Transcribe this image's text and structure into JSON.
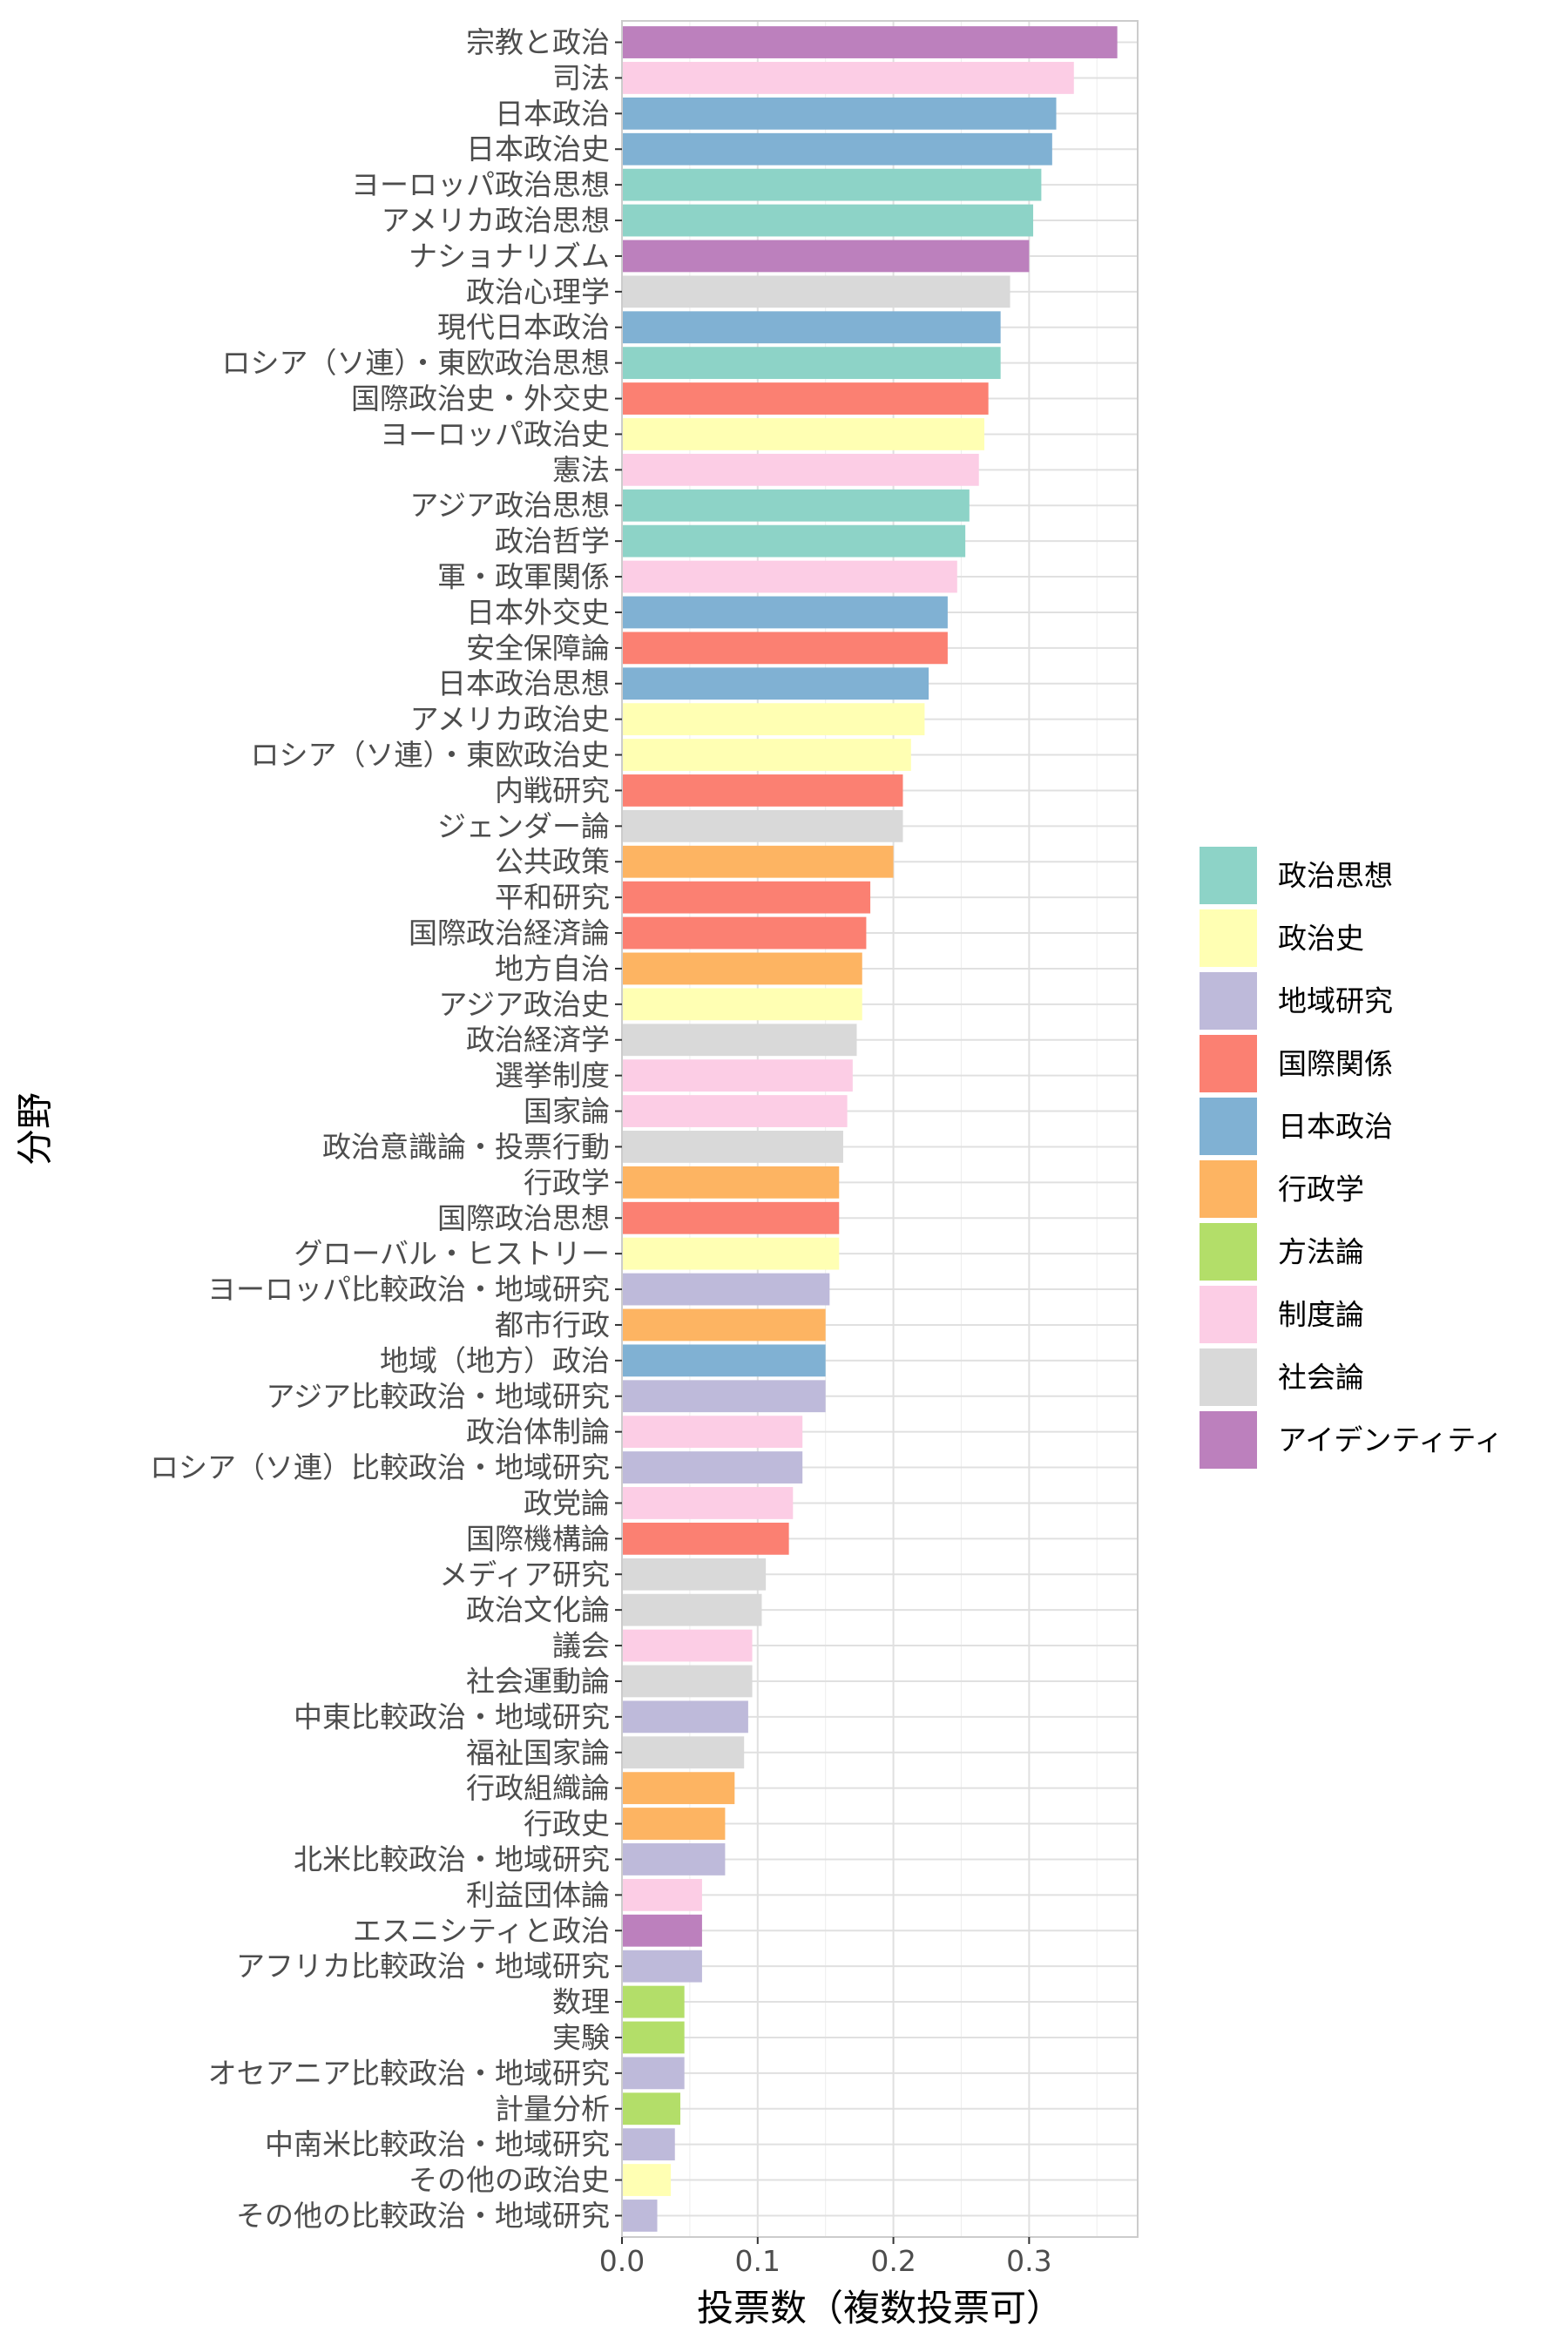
{
  "chart_data": {
    "type": "bar",
    "orientation": "horizontal",
    "xlabel": "投票数（複数投票可）",
    "ylabel": "分野",
    "xlim": [
      0,
      0.38
    ],
    "xticks": [
      0.0,
      0.1,
      0.2,
      0.3
    ],
    "xtick_labels": [
      "0.0",
      "0.1",
      "0.2",
      "0.3"
    ],
    "grid": true,
    "legend_position": "right",
    "legend": [
      {
        "name": "政治思想",
        "color": "#8DD3C7"
      },
      {
        "name": "政治史",
        "color": "#FFFFB3"
      },
      {
        "name": "地域研究",
        "color": "#BEBADA"
      },
      {
        "name": "国際関係",
        "color": "#FB8072"
      },
      {
        "name": "日本政治",
        "color": "#80B1D3"
      },
      {
        "name": "行政学",
        "color": "#FDB462"
      },
      {
        "name": "方法論",
        "color": "#B3DE69"
      },
      {
        "name": "制度論",
        "color": "#FCCDE5"
      },
      {
        "name": "社会論",
        "color": "#D9D9D9"
      },
      {
        "name": "アイデンティティ",
        "color": "#BC80BD"
      }
    ],
    "bars": [
      {
        "label": "宗教と政治",
        "value": 0.365,
        "group": "アイデンティティ"
      },
      {
        "label": "司法",
        "value": 0.333,
        "group": "制度論"
      },
      {
        "label": "日本政治",
        "value": 0.32,
        "group": "日本政治"
      },
      {
        "label": "日本政治史",
        "value": 0.317,
        "group": "日本政治"
      },
      {
        "label": "ヨーロッパ政治思想",
        "value": 0.309,
        "group": "政治思想"
      },
      {
        "label": "アメリカ政治思想",
        "value": 0.303,
        "group": "政治思想"
      },
      {
        "label": "ナショナリズム",
        "value": 0.3,
        "group": "アイデンティティ"
      },
      {
        "label": "政治心理学",
        "value": 0.286,
        "group": "社会論"
      },
      {
        "label": "現代日本政治",
        "value": 0.279,
        "group": "日本政治"
      },
      {
        "label": "ロシア（ソ連）・東欧政治思想",
        "value": 0.279,
        "group": "政治思想"
      },
      {
        "label": "国際政治史・外交史",
        "value": 0.27,
        "group": "国際関係"
      },
      {
        "label": "ヨーロッパ政治史",
        "value": 0.267,
        "group": "政治史"
      },
      {
        "label": "憲法",
        "value": 0.263,
        "group": "制度論"
      },
      {
        "label": "アジア政治思想",
        "value": 0.256,
        "group": "政治思想"
      },
      {
        "label": "政治哲学",
        "value": 0.253,
        "group": "政治思想"
      },
      {
        "label": "軍・政軍関係",
        "value": 0.247,
        "group": "制度論"
      },
      {
        "label": "日本外交史",
        "value": 0.24,
        "group": "日本政治"
      },
      {
        "label": "安全保障論",
        "value": 0.24,
        "group": "国際関係"
      },
      {
        "label": "日本政治思想",
        "value": 0.226,
        "group": "日本政治"
      },
      {
        "label": "アメリカ政治史",
        "value": 0.223,
        "group": "政治史"
      },
      {
        "label": "ロシア（ソ連）・東欧政治史",
        "value": 0.213,
        "group": "政治史"
      },
      {
        "label": "内戦研究",
        "value": 0.207,
        "group": "国際関係"
      },
      {
        "label": "ジェンダー論",
        "value": 0.207,
        "group": "社会論"
      },
      {
        "label": "公共政策",
        "value": 0.2,
        "group": "行政学"
      },
      {
        "label": "平和研究",
        "value": 0.183,
        "group": "国際関係"
      },
      {
        "label": "国際政治経済論",
        "value": 0.18,
        "group": "国際関係"
      },
      {
        "label": "地方自治",
        "value": 0.177,
        "group": "行政学"
      },
      {
        "label": "アジア政治史",
        "value": 0.177,
        "group": "政治史"
      },
      {
        "label": "政治経済学",
        "value": 0.173,
        "group": "社会論"
      },
      {
        "label": "選挙制度",
        "value": 0.17,
        "group": "制度論"
      },
      {
        "label": "国家論",
        "value": 0.166,
        "group": "制度論"
      },
      {
        "label": "政治意識論・投票行動",
        "value": 0.163,
        "group": "社会論"
      },
      {
        "label": "行政学",
        "value": 0.16,
        "group": "行政学"
      },
      {
        "label": "国際政治思想",
        "value": 0.16,
        "group": "国際関係"
      },
      {
        "label": "グローバル・ヒストリー",
        "value": 0.16,
        "group": "政治史"
      },
      {
        "label": "ヨーロッパ比較政治・地域研究",
        "value": 0.153,
        "group": "地域研究"
      },
      {
        "label": "都市行政",
        "value": 0.15,
        "group": "行政学"
      },
      {
        "label": "地域（地方）政治",
        "value": 0.15,
        "group": "日本政治"
      },
      {
        "label": "アジア比較政治・地域研究",
        "value": 0.15,
        "group": "地域研究"
      },
      {
        "label": "政治体制論",
        "value": 0.133,
        "group": "制度論"
      },
      {
        "label": "ロシア（ソ連）比較政治・地域研究",
        "value": 0.133,
        "group": "地域研究"
      },
      {
        "label": "政党論",
        "value": 0.126,
        "group": "制度論"
      },
      {
        "label": "国際機構論",
        "value": 0.123,
        "group": "国際関係"
      },
      {
        "label": "メディア研究",
        "value": 0.106,
        "group": "社会論"
      },
      {
        "label": "政治文化論",
        "value": 0.103,
        "group": "社会論"
      },
      {
        "label": "議会",
        "value": 0.096,
        "group": "制度論"
      },
      {
        "label": "社会運動論",
        "value": 0.096,
        "group": "社会論"
      },
      {
        "label": "中東比較政治・地域研究",
        "value": 0.093,
        "group": "地域研究"
      },
      {
        "label": "福祉国家論",
        "value": 0.09,
        "group": "社会論"
      },
      {
        "label": "行政組織論",
        "value": 0.083,
        "group": "行政学"
      },
      {
        "label": "行政史",
        "value": 0.076,
        "group": "行政学"
      },
      {
        "label": "北米比較政治・地域研究",
        "value": 0.076,
        "group": "地域研究"
      },
      {
        "label": "利益団体論",
        "value": 0.059,
        "group": "制度論"
      },
      {
        "label": "エスニシティと政治",
        "value": 0.059,
        "group": "アイデンティティ"
      },
      {
        "label": "アフリカ比較政治・地域研究",
        "value": 0.059,
        "group": "地域研究"
      },
      {
        "label": "数理",
        "value": 0.046,
        "group": "方法論"
      },
      {
        "label": "実験",
        "value": 0.046,
        "group": "方法論"
      },
      {
        "label": "オセアニア比較政治・地域研究",
        "value": 0.046,
        "group": "地域研究"
      },
      {
        "label": "計量分析",
        "value": 0.043,
        "group": "方法論"
      },
      {
        "label": "中南米比較政治・地域研究",
        "value": 0.039,
        "group": "地域研究"
      },
      {
        "label": "その他の政治史",
        "value": 0.036,
        "group": "政治史"
      },
      {
        "label": "その他の比較政治・地域研究",
        "value": 0.026,
        "group": "地域研究"
      }
    ]
  }
}
